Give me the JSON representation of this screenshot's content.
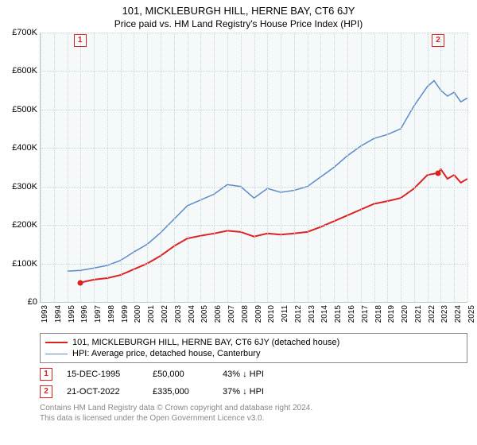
{
  "title": "101, MICKLEBURGH HILL, HERNE BAY, CT6 6JY",
  "subtitle": "Price paid vs. HM Land Registry's House Price Index (HPI)",
  "chart": {
    "type": "line",
    "background_color": "#f5f9fa",
    "grid_color": "#c8d4d6",
    "x_years": [
      1993,
      1994,
      1995,
      1996,
      1997,
      1998,
      1999,
      2000,
      2001,
      2002,
      2003,
      2004,
      2005,
      2006,
      2007,
      2008,
      2009,
      2010,
      2011,
      2012,
      2013,
      2014,
      2015,
      2016,
      2017,
      2018,
      2019,
      2020,
      2021,
      2022,
      2023,
      2024,
      2025
    ],
    "y_ticks": [
      0,
      100000,
      200000,
      300000,
      400000,
      500000,
      600000,
      700000
    ],
    "y_tick_labels": [
      "£0",
      "£100K",
      "£200K",
      "£300K",
      "£400K",
      "£500K",
      "£600K",
      "£700K"
    ],
    "ylim": [
      0,
      700000
    ],
    "series": [
      {
        "name": "property",
        "label": "101, MICKLEBURGH HILL, HERNE BAY, CT6 6JY (detached house)",
        "color": "#d22",
        "width": 2,
        "data": [
          [
            1995.96,
            50000
          ],
          [
            1997,
            58000
          ],
          [
            1998,
            62000
          ],
          [
            1999,
            70000
          ],
          [
            2000,
            85000
          ],
          [
            2001,
            100000
          ],
          [
            2002,
            120000
          ],
          [
            2003,
            145000
          ],
          [
            2004,
            165000
          ],
          [
            2005,
            172000
          ],
          [
            2006,
            178000
          ],
          [
            2007,
            185000
          ],
          [
            2008,
            182000
          ],
          [
            2009,
            170000
          ],
          [
            2010,
            178000
          ],
          [
            2011,
            175000
          ],
          [
            2012,
            178000
          ],
          [
            2013,
            182000
          ],
          [
            2014,
            195000
          ],
          [
            2015,
            210000
          ],
          [
            2016,
            225000
          ],
          [
            2017,
            240000
          ],
          [
            2018,
            255000
          ],
          [
            2019,
            262000
          ],
          [
            2020,
            270000
          ],
          [
            2021,
            295000
          ],
          [
            2022,
            330000
          ],
          [
            2022.8,
            335000
          ],
          [
            2023,
            345000
          ],
          [
            2023.5,
            320000
          ],
          [
            2024,
            330000
          ],
          [
            2024.5,
            310000
          ],
          [
            2025,
            320000
          ]
        ]
      },
      {
        "name": "hpi",
        "label": "HPI: Average price, detached house, Canterbury",
        "color": "#5b8bc9",
        "width": 1.5,
        "data": [
          [
            1995,
            80000
          ],
          [
            1996,
            82000
          ],
          [
            1997,
            88000
          ],
          [
            1998,
            95000
          ],
          [
            1999,
            108000
          ],
          [
            2000,
            130000
          ],
          [
            2001,
            150000
          ],
          [
            2002,
            180000
          ],
          [
            2003,
            215000
          ],
          [
            2004,
            250000
          ],
          [
            2005,
            265000
          ],
          [
            2006,
            280000
          ],
          [
            2007,
            305000
          ],
          [
            2008,
            300000
          ],
          [
            2009,
            270000
          ],
          [
            2010,
            295000
          ],
          [
            2011,
            285000
          ],
          [
            2012,
            290000
          ],
          [
            2013,
            300000
          ],
          [
            2014,
            325000
          ],
          [
            2015,
            350000
          ],
          [
            2016,
            380000
          ],
          [
            2017,
            405000
          ],
          [
            2018,
            425000
          ],
          [
            2019,
            435000
          ],
          [
            2020,
            450000
          ],
          [
            2021,
            510000
          ],
          [
            2022,
            560000
          ],
          [
            2022.5,
            575000
          ],
          [
            2023,
            550000
          ],
          [
            2023.5,
            535000
          ],
          [
            2024,
            545000
          ],
          [
            2024.5,
            520000
          ],
          [
            2025,
            530000
          ]
        ]
      }
    ],
    "markers": [
      {
        "id": "1",
        "year": 1995.96,
        "value": 50000,
        "color": "#d22"
      },
      {
        "id": "2",
        "year": 2022.8,
        "value": 335000,
        "color": "#d22"
      }
    ]
  },
  "sales": [
    {
      "marker": "1",
      "color": "#d22",
      "date": "15-DEC-1995",
      "price": "£50,000",
      "delta": "43% ↓ HPI"
    },
    {
      "marker": "2",
      "color": "#d22",
      "date": "21-OCT-2022",
      "price": "£335,000",
      "delta": "37% ↓ HPI"
    }
  ],
  "license": {
    "line1": "Contains HM Land Registry data © Crown copyright and database right 2024.",
    "line2": "This data is licensed under the Open Government Licence v3.0."
  }
}
